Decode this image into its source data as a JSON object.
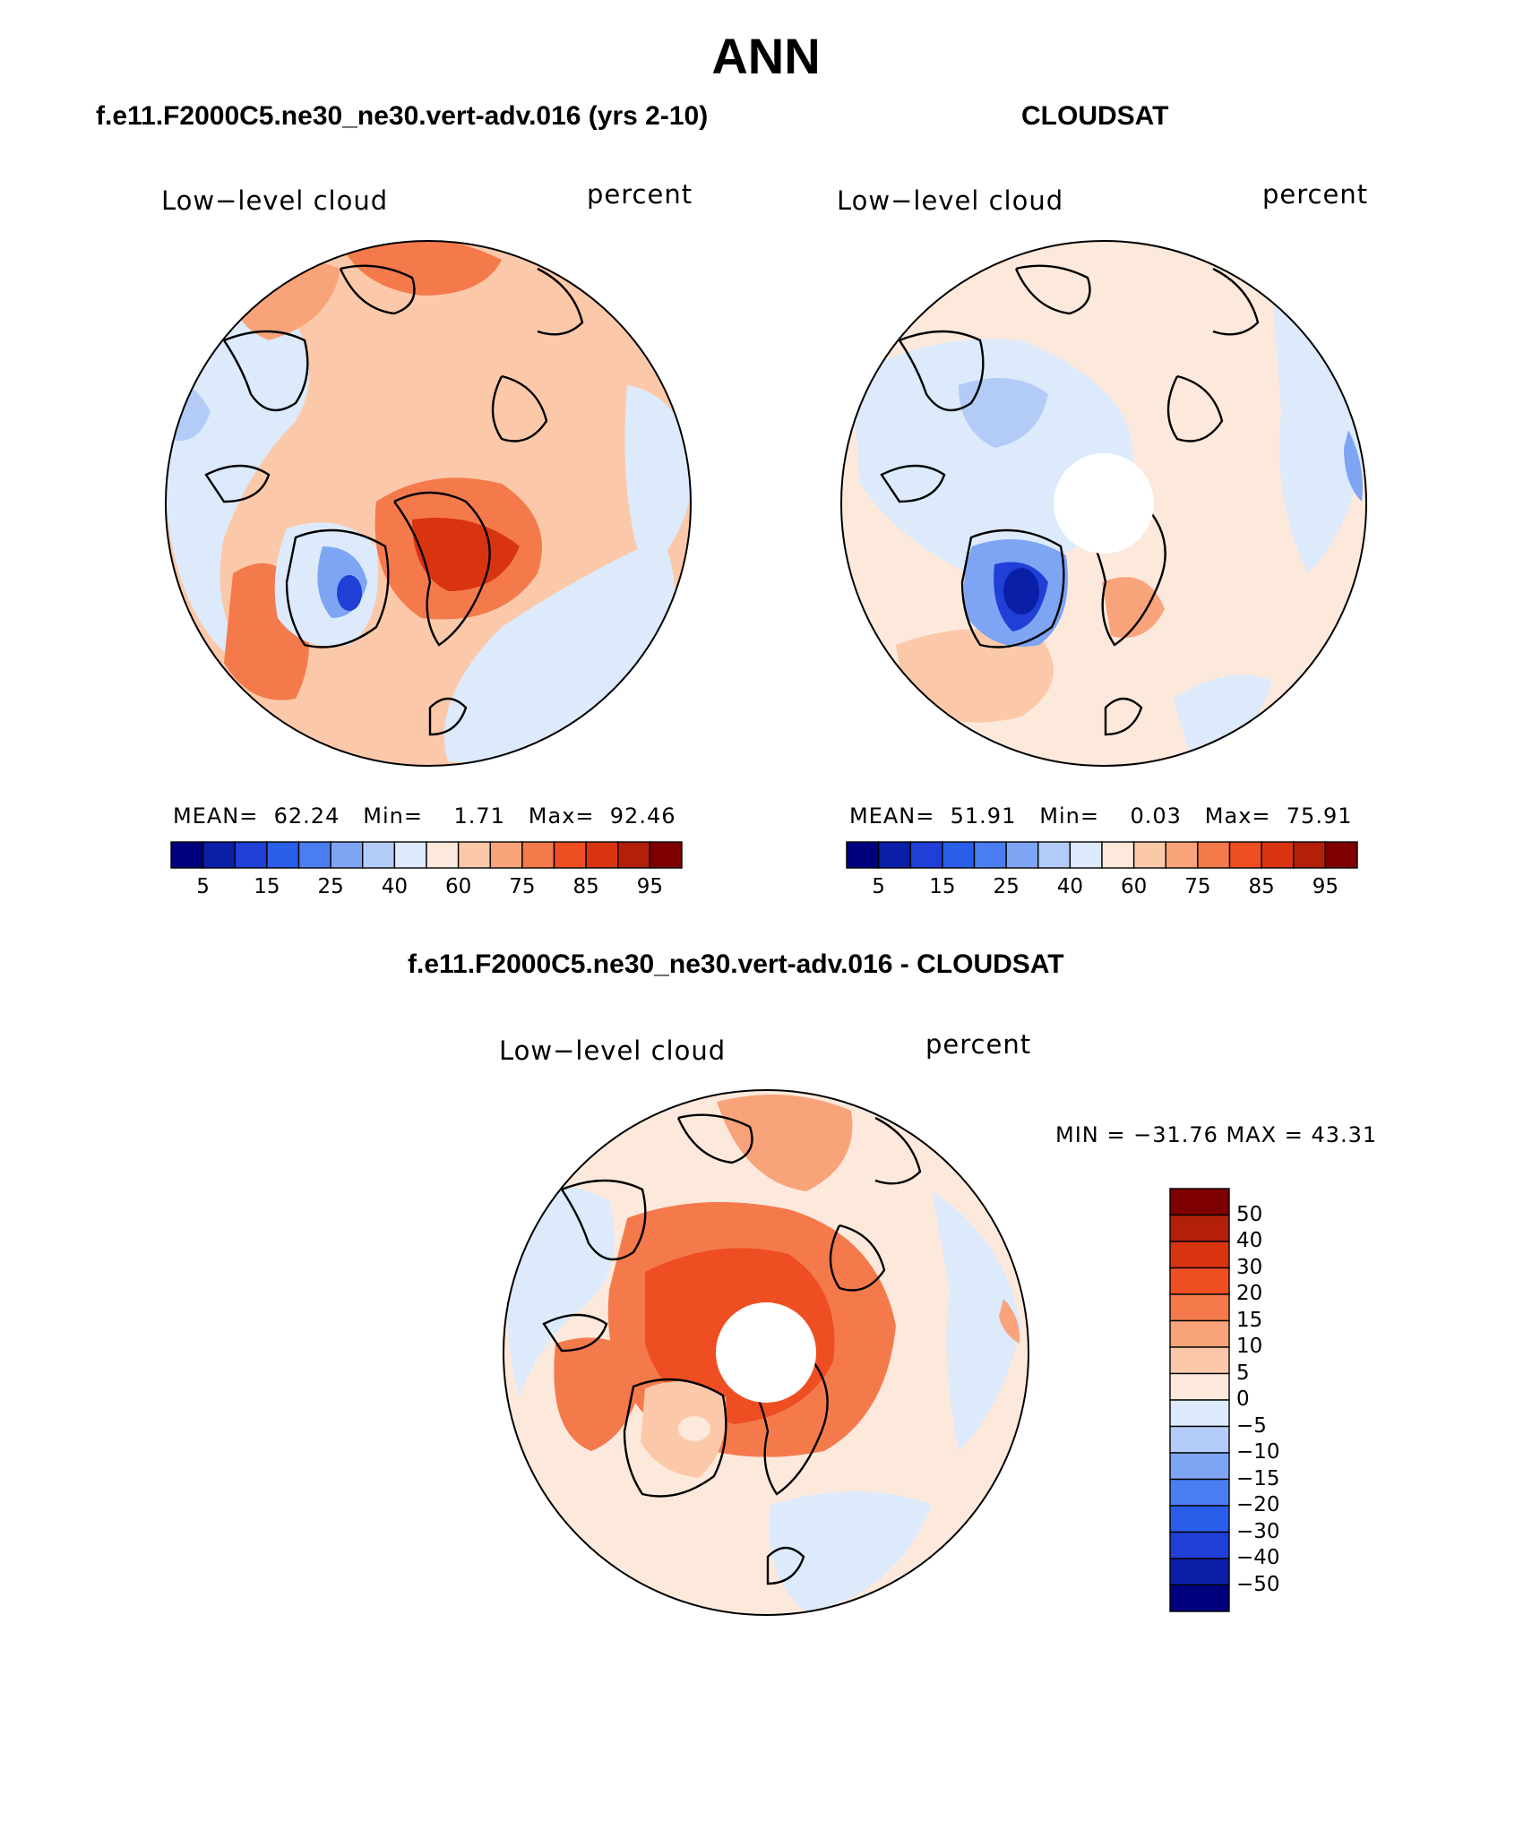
{
  "title": "ANN",
  "panels": [
    {
      "id": "model",
      "title": "f.e11.F2000C5.ne30_ne30.vert-adv.016 (yrs 2-10)",
      "left_label": "Low−level cloud",
      "right_label": "percent",
      "mean_label": "MEAN=",
      "mean": "62.24",
      "min_label": "Min=",
      "min": "1.71",
      "max_label": "Max=",
      "max": "92.46",
      "has_pole_hole": false
    },
    {
      "id": "obs",
      "title": "CLOUDSAT",
      "left_label": "Low−level cloud",
      "right_label": "percent",
      "mean_label": "MEAN=",
      "mean": "51.91",
      "min_label": "Min=",
      "min": "0.03",
      "max_label": "Max=",
      "max": "75.91",
      "has_pole_hole": true
    },
    {
      "id": "diff",
      "title": "f.e11.F2000C5.ne30_ne30.vert-adv.016 - CLOUDSAT",
      "left_label": "Low−level cloud",
      "right_label": "percent",
      "minmax_text": "MIN = −31.76 MAX =   43.31",
      "has_pole_hole": true
    }
  ],
  "abs_colorbar": {
    "colors": [
      "#00007f",
      "#0a1fa8",
      "#1f3fd6",
      "#2a5ee8",
      "#4a7ef0",
      "#7ea4f4",
      "#b3cbf7",
      "#dceafc",
      "#fde9dc",
      "#fbc9a9",
      "#f9a37a",
      "#f47a4c",
      "#ee4e22",
      "#d93410",
      "#b2200a",
      "#7f0000"
    ],
    "tick_labels": [
      "5",
      "15",
      "25",
      "40",
      "60",
      "75",
      "85",
      "95"
    ]
  },
  "diff_colorbar": {
    "colors": [
      "#7f0000",
      "#b2200a",
      "#d93410",
      "#ee4e22",
      "#f47a4c",
      "#f9a37a",
      "#fbc9a9",
      "#fde9dc",
      "#dceafc",
      "#b3cbf7",
      "#7ea4f4",
      "#4a7ef0",
      "#2a5ee8",
      "#1f3fd6",
      "#0a1fa8",
      "#00007f"
    ],
    "tick_labels": [
      "50",
      "40",
      "30",
      "20",
      "15",
      "10",
      "5",
      "0",
      "−5",
      "−10",
      "−15",
      "−20",
      "−30",
      "−40",
      "−50"
    ]
  }
}
